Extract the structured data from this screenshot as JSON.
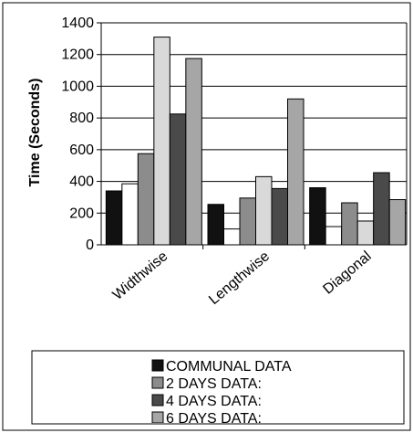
{
  "chart_data": {
    "type": "bar",
    "title": "",
    "xlabel": "",
    "ylabel": "Time (Seconds)",
    "ylim": [
      0,
      1400
    ],
    "yticks": [
      0,
      200,
      400,
      600,
      800,
      1000,
      1200,
      1400
    ],
    "grid": true,
    "legend_position": "bottom",
    "categories": [
      "Widthwise",
      "Lengthwise",
      "Diagonal"
    ],
    "series": [
      {
        "name": "COMMUNAL DATA",
        "color": "#111111",
        "values": [
          340,
          255,
          360
        ]
      },
      {
        "name": "",
        "color": "#ffffff",
        "values": [
          385,
          100,
          115
        ]
      },
      {
        "name": "2 DAYS DATA:",
        "color": "#8c8c8c",
        "values": [
          575,
          295,
          265
        ]
      },
      {
        "name": "",
        "color": "#d9d9d9",
        "values": [
          1310,
          430,
          150
        ]
      },
      {
        "name": "4 DAYS DATA:",
        "color": "#4a4a4a",
        "values": [
          825,
          355,
          455
        ]
      },
      {
        "name": "6 DAYS DATA:",
        "color": "#a6a6a6",
        "values": [
          1175,
          920,
          285
        ]
      }
    ]
  }
}
